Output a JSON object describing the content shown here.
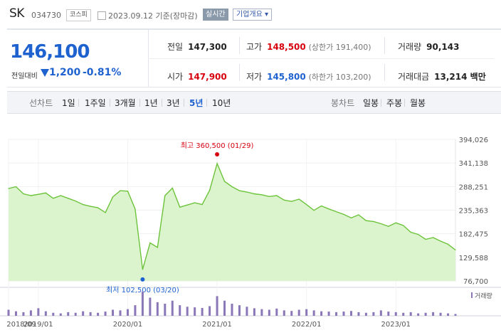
{
  "stock": {
    "name": "SK",
    "code": "034730",
    "market": "코스피",
    "date_text": "2023.09.12 기준(장마감)",
    "realtime_label": "실시간",
    "corp_button": "기업개요 ▾"
  },
  "price": {
    "current": "146,100",
    "change_label": "전일대비",
    "change": "1,200",
    "change_pct": "-0.81%"
  },
  "summary": {
    "prev_label": "전일",
    "prev": "147,300",
    "high_label": "고가",
    "high": "148,500",
    "high_limit": "(상한가 191,400)",
    "volume_label": "거래량",
    "volume": "90,143",
    "open_label": "시가",
    "open": "147,900",
    "low_label": "저가",
    "low": "145,800",
    "low_limit": "(하한가 103,200)",
    "amount_label": "거래대금",
    "amount": "13,214 백만"
  },
  "period": {
    "label": "선차트",
    "options": [
      "1일",
      "1주일",
      "3개월",
      "1년",
      "3년",
      "5년",
      "10년"
    ],
    "selected": "5년"
  },
  "candle": {
    "label": "봉차트",
    "options": [
      "일봉",
      "주봉",
      "월봉"
    ]
  },
  "colors": {
    "line": "#6cc33a",
    "fill": "#d8f3c8",
    "up": "#d7000f",
    "down": "#1e62d0",
    "volume": "#8a77b8"
  },
  "chart_data": {
    "type": "area",
    "x": [
      "2018/09",
      "2018/10",
      "2018/11",
      "2018/12",
      "2019/01",
      "2019/02",
      "2019/03",
      "2019/04",
      "2019/05",
      "2019/06",
      "2019/07",
      "2019/08",
      "2019/09",
      "2019/10",
      "2019/11",
      "2019/12",
      "2020/01",
      "2020/02",
      "2020/03",
      "2020/04",
      "2020/05",
      "2020/06",
      "2020/07",
      "2020/08",
      "2020/09",
      "2020/10",
      "2020/11",
      "2020/12",
      "2021/01",
      "2021/02",
      "2021/03",
      "2021/04",
      "2021/05",
      "2021/06",
      "2021/07",
      "2021/08",
      "2021/09",
      "2021/10",
      "2021/11",
      "2021/12",
      "2022/01",
      "2022/02",
      "2022/03",
      "2022/04",
      "2022/05",
      "2022/06",
      "2022/07",
      "2022/08",
      "2022/09",
      "2022/10",
      "2022/11",
      "2022/12",
      "2023/01",
      "2023/02",
      "2023/03",
      "2023/04",
      "2023/05",
      "2023/06",
      "2023/07",
      "2023/08",
      "2023/09"
    ],
    "values": [
      284000,
      288000,
      272000,
      268000,
      271000,
      274000,
      262000,
      268000,
      262000,
      256000,
      248000,
      244000,
      241000,
      230000,
      265000,
      279000,
      278000,
      238000,
      102500,
      162000,
      152000,
      268000,
      285000,
      242000,
      247000,
      252000,
      248000,
      280000,
      340000,
      300000,
      288000,
      279000,
      276000,
      272000,
      270000,
      266000,
      268000,
      258000,
      255000,
      260000,
      248000,
      235000,
      245000,
      238000,
      232000,
      226000,
      218000,
      225000,
      212000,
      210000,
      205000,
      199000,
      207000,
      201000,
      186000,
      181000,
      170000,
      174000,
      166000,
      159000,
      146100
    ],
    "y_ticks": [
      "394,026",
      "341,138",
      "288,251",
      "235,363",
      "182,475",
      "129,588",
      "76,700"
    ],
    "ylim": [
      76700,
      394026
    ],
    "x_tick_labels": [
      "2018/09",
      "2019/01",
      "2020/01",
      "2021/01",
      "2022/01",
      "2023/01"
    ],
    "max_label": "최고 360,500 (01/29)",
    "min_label": "최저 102,500 (03/20)",
    "volume_label": "거래량",
    "volume": [
      20,
      15,
      12,
      18,
      25,
      15,
      10,
      8,
      12,
      10,
      15,
      12,
      10,
      14,
      20,
      18,
      22,
      35,
      80,
      60,
      45,
      40,
      50,
      35,
      30,
      28,
      26,
      32,
      65,
      50,
      40,
      35,
      30,
      25,
      22,
      20,
      24,
      18,
      16,
      20,
      22,
      18,
      15,
      14,
      12,
      14,
      16,
      12,
      10,
      12,
      18,
      14,
      12,
      10,
      12,
      8,
      10,
      12,
      10,
      8,
      6
    ]
  }
}
